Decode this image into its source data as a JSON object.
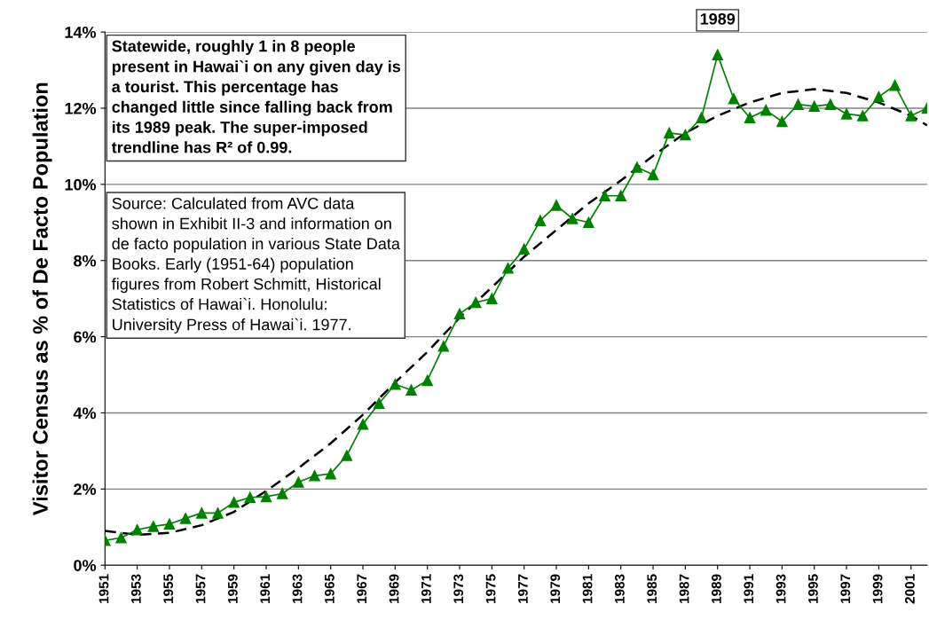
{
  "chart_data": {
    "type": "line",
    "ylabel": "Visitor Census as % of De Facto Population",
    "xlim": [
      1951,
      2002
    ],
    "xticks": [
      1951,
      1953,
      1955,
      1957,
      1959,
      1961,
      1963,
      1965,
      1967,
      1969,
      1971,
      1973,
      1975,
      1977,
      1979,
      1981,
      1983,
      1985,
      1987,
      1989,
      1991,
      1993,
      1995,
      1997,
      1999,
      2001
    ],
    "ylim": [
      0,
      14
    ],
    "yticks": [
      {
        "value": 0,
        "label": "0%"
      },
      {
        "value": 2,
        "label": "2%"
      },
      {
        "value": 4,
        "label": "4%"
      },
      {
        "value": 6,
        "label": "6%"
      },
      {
        "value": 8,
        "label": "8%"
      },
      {
        "value": 10,
        "label": "10%"
      },
      {
        "value": 12,
        "label": "12%"
      },
      {
        "value": 14,
        "label": "14%"
      }
    ],
    "grid": "y",
    "legend": false,
    "series": [
      {
        "color": "#008000",
        "marker": "triangle",
        "line_style": "solid",
        "x": [
          1951,
          1952,
          1953,
          1954,
          1955,
          1956,
          1957,
          1958,
          1959,
          1960,
          1961,
          1962,
          1963,
          1964,
          1965,
          1966,
          1967,
          1968,
          1969,
          1970,
          1971,
          1972,
          1973,
          1974,
          1975,
          1976,
          1977,
          1978,
          1979,
          1980,
          1981,
          1982,
          1983,
          1984,
          1985,
          1986,
          1987,
          1988,
          1989,
          1990,
          1991,
          1992,
          1993,
          1994,
          1995,
          1996,
          1997,
          1998,
          1999,
          2000,
          2001,
          2002
        ],
        "values": [
          0.65,
          0.72,
          0.93,
          1.02,
          1.08,
          1.23,
          1.37,
          1.37,
          1.65,
          1.78,
          1.8,
          1.88,
          2.18,
          2.35,
          2.4,
          2.88,
          3.7,
          4.25,
          4.75,
          4.6,
          4.85,
          5.75,
          6.6,
          6.9,
          7.0,
          7.8,
          8.3,
          9.05,
          9.45,
          9.1,
          9.0,
          9.7,
          9.7,
          10.45,
          10.25,
          11.35,
          11.3,
          11.75,
          13.4,
          12.25,
          11.75,
          11.95,
          11.65,
          12.1,
          12.05,
          12.1,
          11.85,
          11.8,
          12.3,
          12.6,
          11.8,
          12.0
        ]
      },
      {
        "color": "#000000",
        "marker": "none",
        "line_style": "dashed",
        "x": [
          1951,
          1953,
          1955,
          1957,
          1959,
          1961,
          1963,
          1965,
          1967,
          1969,
          1971,
          1973,
          1975,
          1977,
          1979,
          1981,
          1983,
          1985,
          1987,
          1989,
          1991,
          1993,
          1995,
          1997,
          1999,
          2001,
          2002
        ],
        "values": [
          0.9,
          0.8,
          0.85,
          1.05,
          1.4,
          1.95,
          2.55,
          3.2,
          3.95,
          4.8,
          5.6,
          6.5,
          7.3,
          8.1,
          8.8,
          9.5,
          10.1,
          10.75,
          11.35,
          11.8,
          12.15,
          12.4,
          12.5,
          12.4,
          12.15,
          11.8,
          11.55
        ]
      }
    ],
    "annotations": [
      "Statewide, roughly 1 in 8 people\npresent in Hawai`i on any given day is\na tourist. This percentage has\nchanged little since falling back from\nits 1989 peak. The super-imposed\ntrendline has R² of 0.99.",
      "Source: Calculated from AVC data\nshown in Exhibit II-3 and information on\nde facto population in various State Data\nBooks. Early (1951-64) population\nfigures from Robert Schmitt, Historical\nStatistics of Hawai`i. Honolulu:\nUniversity Press of Hawai`i. 1977.",
      {
        "text": "1989",
        "x": 1989,
        "y": 13.4
      }
    ]
  }
}
